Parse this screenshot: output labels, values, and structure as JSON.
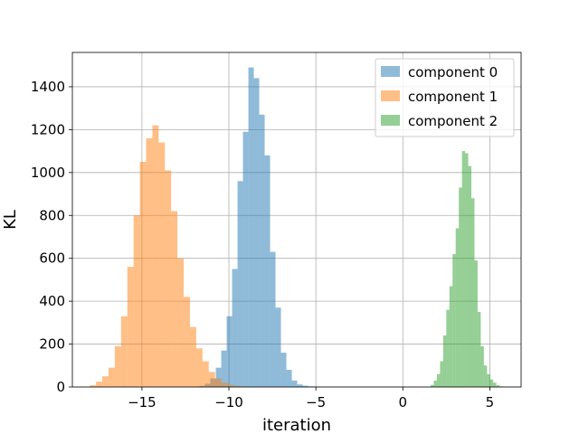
{
  "chart_data": {
    "type": "bar",
    "title": "",
    "xlabel": "iteration",
    "ylabel": "KL",
    "xlim": [
      -19.0,
      6.8
    ],
    "ylim": [
      0,
      1560
    ],
    "xticks": [
      -15,
      -10,
      -5,
      0,
      5
    ],
    "xtick_labels": [
      "−15",
      "−10",
      "−5",
      "0",
      "5"
    ],
    "yticks": [
      0,
      200,
      400,
      600,
      800,
      1000,
      1200,
      1400
    ],
    "ytick_labels": [
      "0",
      "200",
      "400",
      "600",
      "800",
      "1000",
      "1200",
      "1400"
    ],
    "grid": true,
    "legend": "top-right",
    "series": [
      {
        "name": "component 0",
        "color": "#1f77b4",
        "alpha": 0.5,
        "bin_edges": [
          -12.0,
          -11.688,
          -11.376,
          -11.064,
          -10.752,
          -10.44,
          -10.128,
          -9.816,
          -9.504,
          -9.192,
          -8.88,
          -8.568,
          -8.256,
          -7.944,
          -7.632,
          -7.32,
          -7.008,
          -6.696,
          -6.384,
          -6.072,
          -5.76,
          -5.448,
          -5.136,
          -4.824,
          -4.512,
          -4.2
        ],
        "values": [
          2,
          5,
          15,
          40,
          90,
          170,
          330,
          550,
          960,
          1190,
          1490,
          1440,
          1270,
          1080,
          630,
          370,
          160,
          80,
          30,
          12,
          6,
          3,
          2,
          1,
          1
        ]
      },
      {
        "name": "component 1",
        "color": "#ff7f0e",
        "alpha": 0.5,
        "bin_edges": [
          -18.0,
          -17.64,
          -17.28,
          -16.92,
          -16.56,
          -16.2,
          -15.84,
          -15.48,
          -15.12,
          -14.76,
          -14.4,
          -14.04,
          -13.68,
          -13.32,
          -12.96,
          -12.6,
          -12.24,
          -11.88,
          -11.52,
          -11.16,
          -10.8,
          -10.44,
          -10.08,
          -9.72,
          -9.36,
          -9.0
        ],
        "values": [
          8,
          25,
          50,
          90,
          190,
          330,
          560,
          800,
          1050,
          1160,
          1220,
          1140,
          1010,
          820,
          600,
          420,
          280,
          180,
          120,
          70,
          40,
          20,
          10,
          5,
          3
        ]
      },
      {
        "name": "component 2",
        "color": "#2ca02c",
        "alpha": 0.5,
        "bin_edges": [
          1.6,
          1.78,
          1.96,
          2.14,
          2.32,
          2.5,
          2.68,
          2.86,
          3.04,
          3.22,
          3.4,
          3.58,
          3.76,
          3.94,
          4.12,
          4.3,
          4.48,
          4.66,
          4.84,
          5.02,
          5.2,
          5.38,
          5.56,
          5.74
        ],
        "values": [
          10,
          30,
          60,
          120,
          240,
          360,
          470,
          620,
          740,
          930,
          1100,
          1090,
          1030,
          880,
          590,
          350,
          190,
          100,
          60,
          35,
          20,
          8,
          3
        ]
      }
    ]
  }
}
